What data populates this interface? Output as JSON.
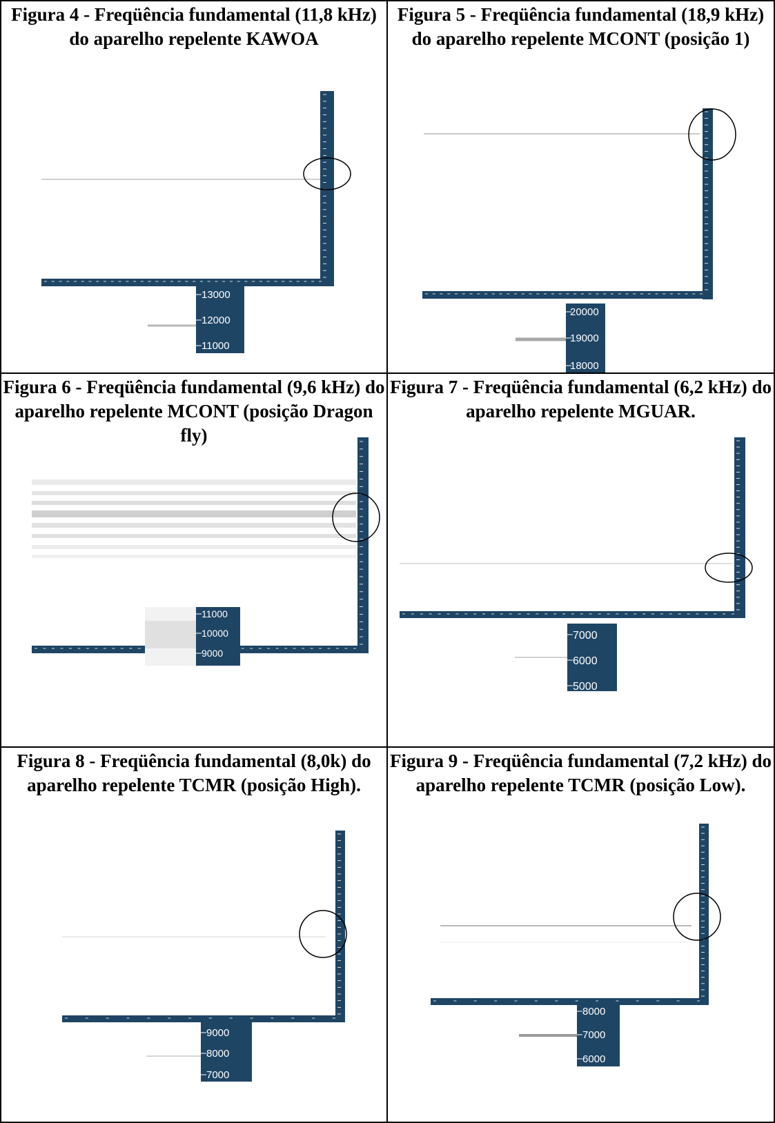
{
  "figures": [
    {
      "caption": "Figura 4 - Freqüência fundamental (11,8 kHz) do aparelho repelente KAWOA",
      "zoom_ticks": [
        "13000",
        "12000",
        "11000"
      ]
    },
    {
      "caption": "Figura 5 - Freqüência fundamental (18,9 kHz) do aparelho repelente MCONT (posição 1)",
      "zoom_ticks": [
        "20000",
        "19000",
        "18000"
      ]
    },
    {
      "caption": "Figura 6 - Freqüência fundamental (9,6 kHz) do aparelho repelente MCONT (posição Dragon fly)",
      "zoom_ticks": [
        "11000",
        "10000",
        "9000"
      ]
    },
    {
      "caption": "Figura 7 - Freqüência fundamental (6,2 kHz) do aparelho repelente MGUAR.",
      "zoom_ticks": [
        "7000",
        "6000",
        "5000"
      ]
    },
    {
      "caption": "Figura 8 - Freqüência fundamental (8,0k) do aparelho repelente TCMR (posição High).",
      "zoom_ticks": [
        "9000",
        "8000",
        "7000"
      ]
    },
    {
      "caption": "Figura 9 - Freqüência fundamental (7,2 kHz) do aparelho repelente TCMR (posição Low).",
      "zoom_ticks": [
        "8000",
        "7000",
        "6000"
      ]
    }
  ],
  "colors": {
    "axis": "#1f4565",
    "tick": "#ffffff",
    "circle": "#000000",
    "trace": "#c4c4c4"
  }
}
